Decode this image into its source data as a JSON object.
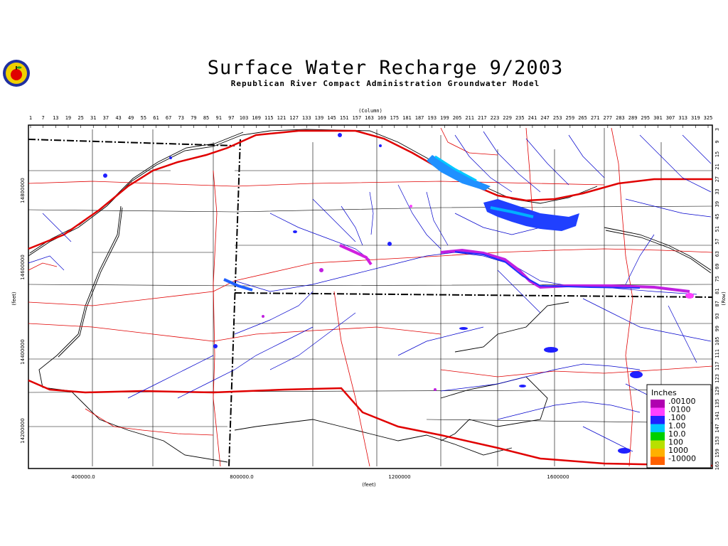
{
  "title": "Surface Water Recharge 9/2003",
  "subtitle": "Republican River Compact Administration Groundwater Model",
  "axes": {
    "column_label": "(Column)",
    "row_label": "(Row)",
    "x_label": "(feet)",
    "y_label": "(feet)",
    "column_ticks": [
      "1",
      "7",
      "13",
      "19",
      "25",
      "31",
      "37",
      "43",
      "49",
      "55",
      "61",
      "67",
      "73",
      "79",
      "85",
      "91",
      "97",
      "103",
      "109",
      "115",
      "121",
      "127",
      "133",
      "139",
      "145",
      "151",
      "157",
      "163",
      "169",
      "175",
      "181",
      "187",
      "193",
      "199",
      "205",
      "211",
      "217",
      "223",
      "229",
      "235",
      "241",
      "247",
      "253",
      "259",
      "265",
      "271",
      "277",
      "283",
      "289",
      "295",
      "301",
      "307",
      "313",
      "319",
      "325"
    ],
    "row_ticks": [
      "3",
      "9",
      "15",
      "21",
      "27",
      "33",
      "39",
      "45",
      "51",
      "57",
      "63",
      "69",
      "75",
      "81",
      "87",
      "93",
      "99",
      "105",
      "111",
      "117",
      "123",
      "129",
      "135",
      "141",
      "147",
      "153",
      "159",
      "165"
    ],
    "x_ticks": [
      "400000.0",
      "800000.0",
      "1200000",
      "1600000"
    ],
    "y_ticks": [
      "14800000",
      "14600000",
      "14400000",
      "14200000"
    ]
  },
  "legend": {
    "title": "Inches",
    "items": [
      {
        "label": ".00100",
        "color": "#b000b0"
      },
      {
        "label": ".0100",
        "color": "#ff40ff"
      },
      {
        "label": ".100",
        "color": "#2020ff"
      },
      {
        "label": "1.00",
        "color": "#00c8ff"
      },
      {
        "label": "10.0",
        "color": "#00d000"
      },
      {
        "label": "100",
        "color": "#b8e000"
      },
      {
        "label": "1000",
        "color": "#ffb000"
      },
      {
        "label": "-10000",
        "color": "#ff6000"
      }
    ]
  },
  "colors": {
    "roads": "#e00000",
    "streams": "#0000cc",
    "boundaries": "#000000",
    "recharge_low": "#2020ff",
    "recharge_high": "#ff40ff"
  },
  "icons": {
    "logo": "apple-seal-icon"
  }
}
